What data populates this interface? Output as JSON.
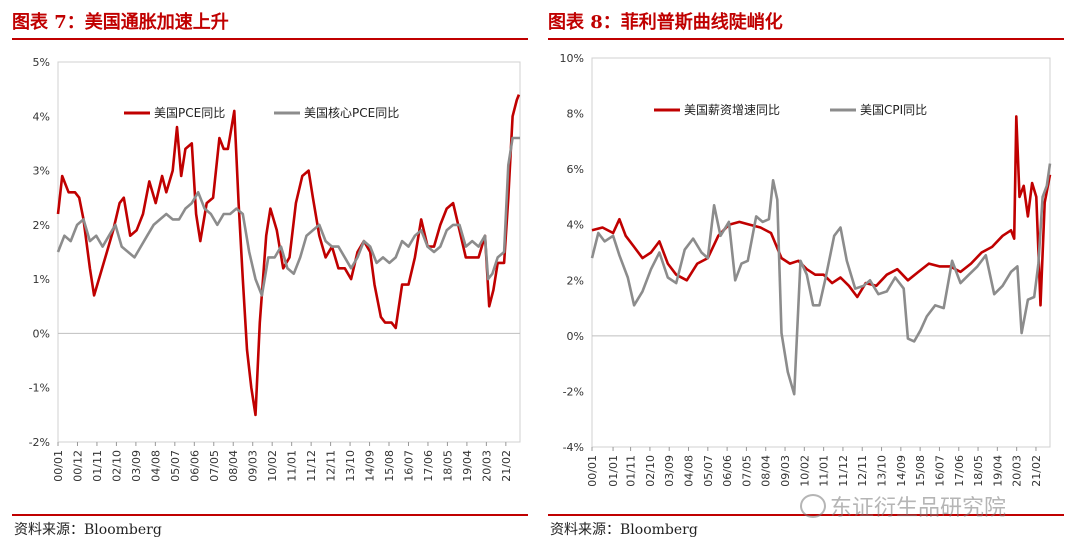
{
  "charts": [
    {
      "title": "图表 7：美国通胀加速上升",
      "source": "资料来源：Bloomberg",
      "chart_data": {
        "type": "line",
        "ylim": [
          -2,
          5
        ],
        "yticks": [
          "-2%",
          "-1%",
          "0%",
          "1%",
          "2%",
          "3%",
          "4%",
          "5%"
        ],
        "ytick_values": [
          -2,
          -1,
          0,
          1,
          2,
          3,
          4,
          5
        ],
        "xlim": [
          2000.0,
          2021.75
        ],
        "xticks": [
          "00/01",
          "00/12",
          "01/11",
          "02/10",
          "03/09",
          "04/08",
          "05/07",
          "06/06",
          "07/05",
          "08/04",
          "09/03",
          "10/02",
          "11/01",
          "11/12",
          "12/11",
          "13/10",
          "14/09",
          "15/08",
          "16/07",
          "17/06",
          "18/05",
          "19/04",
          "20/03",
          "21/02"
        ],
        "xtick_values": [
          2000.0,
          2000.917,
          2001.833,
          2002.75,
          2003.667,
          2004.583,
          2005.5,
          2006.417,
          2007.333,
          2008.25,
          2009.167,
          2010.083,
          2011.0,
          2011.917,
          2012.833,
          2013.75,
          2014.667,
          2015.583,
          2016.5,
          2017.417,
          2018.333,
          2019.25,
          2020.167,
          2021.083
        ],
        "legend_position": "top-left",
        "series": [
          {
            "name": "美国PCE同比",
            "color": "#c00000",
            "x": [
              2000.0,
              2000.2,
              2000.5,
              2000.8,
              2001.0,
              2001.2,
              2001.5,
              2001.7,
              2002.0,
              2002.3,
              2002.6,
              2002.9,
              2003.1,
              2003.4,
              2003.7,
              2004.0,
              2004.3,
              2004.6,
              2004.9,
              2005.1,
              2005.4,
              2005.6,
              2005.8,
              2006.0,
              2006.3,
              2006.5,
              2006.7,
              2007.0,
              2007.3,
              2007.6,
              2007.8,
              2008.0,
              2008.3,
              2008.5,
              2008.7,
              2008.9,
              2009.1,
              2009.3,
              2009.5,
              2009.8,
              2010.0,
              2010.3,
              2010.6,
              2010.9,
              2011.2,
              2011.5,
              2011.8,
              2012.0,
              2012.3,
              2012.6,
              2012.9,
              2013.2,
              2013.5,
              2013.8,
              2014.1,
              2014.4,
              2014.7,
              2014.9,
              2015.2,
              2015.4,
              2015.7,
              2015.9,
              2016.2,
              2016.5,
              2016.8,
              2017.1,
              2017.4,
              2017.7,
              2018.0,
              2018.3,
              2018.6,
              2018.9,
              2019.2,
              2019.5,
              2019.8,
              2020.1,
              2020.3,
              2020.5,
              2020.7,
              2021.0,
              2021.2,
              2021.4,
              2021.6,
              2021.7
            ],
            "y": [
              2.2,
              2.9,
              2.6,
              2.6,
              2.5,
              2.1,
              1.2,
              0.7,
              1.1,
              1.5,
              1.9,
              2.4,
              2.5,
              1.8,
              1.9,
              2.2,
              2.8,
              2.4,
              2.9,
              2.6,
              3.0,
              3.8,
              2.9,
              3.4,
              3.5,
              2.2,
              1.7,
              2.4,
              2.5,
              3.6,
              3.4,
              3.4,
              4.1,
              2.4,
              1.0,
              -0.3,
              -1.0,
              -1.5,
              0.2,
              1.8,
              2.3,
              1.9,
              1.2,
              1.4,
              2.4,
              2.9,
              3.0,
              2.5,
              1.8,
              1.4,
              1.6,
              1.2,
              1.2,
              1.0,
              1.5,
              1.7,
              1.5,
              0.9,
              0.3,
              0.2,
              0.2,
              0.1,
              0.9,
              0.9,
              1.4,
              2.1,
              1.6,
              1.6,
              2.0,
              2.3,
              2.4,
              1.9,
              1.4,
              1.4,
              1.4,
              1.8,
              0.5,
              0.8,
              1.3,
              1.3,
              2.5,
              4.0,
              4.3,
              4.4
            ]
          },
          {
            "name": "美国核心PCE同比",
            "color": "#8c8c8c",
            "x": [
              2000.0,
              2000.3,
              2000.6,
              2000.9,
              2001.2,
              2001.5,
              2001.8,
              2002.1,
              2002.4,
              2002.7,
              2003.0,
              2003.3,
              2003.6,
              2003.9,
              2004.2,
              2004.5,
              2004.8,
              2005.1,
              2005.4,
              2005.7,
              2006.0,
              2006.3,
              2006.6,
              2006.9,
              2007.2,
              2007.5,
              2007.8,
              2008.1,
              2008.4,
              2008.7,
              2009.0,
              2009.3,
              2009.6,
              2009.9,
              2010.2,
              2010.5,
              2010.8,
              2011.1,
              2011.4,
              2011.7,
              2012.0,
              2012.3,
              2012.6,
              2012.9,
              2013.2,
              2013.5,
              2013.8,
              2014.1,
              2014.4,
              2014.7,
              2015.0,
              2015.3,
              2015.6,
              2015.9,
              2016.2,
              2016.5,
              2016.8,
              2017.1,
              2017.4,
              2017.7,
              2018.0,
              2018.3,
              2018.6,
              2018.9,
              2019.2,
              2019.5,
              2019.8,
              2020.1,
              2020.25,
              2020.45,
              2020.7,
              2021.0,
              2021.2,
              2021.4,
              2021.6,
              2021.75
            ],
            "y": [
              1.5,
              1.8,
              1.7,
              2.0,
              2.1,
              1.7,
              1.8,
              1.6,
              1.8,
              2.0,
              1.6,
              1.5,
              1.4,
              1.6,
              1.8,
              2.0,
              2.1,
              2.2,
              2.1,
              2.1,
              2.3,
              2.4,
              2.6,
              2.3,
              2.2,
              2.0,
              2.2,
              2.2,
              2.3,
              2.2,
              1.5,
              1.0,
              0.7,
              1.4,
              1.4,
              1.6,
              1.2,
              1.1,
              1.4,
              1.8,
              1.9,
              2.0,
              1.7,
              1.6,
              1.6,
              1.4,
              1.2,
              1.4,
              1.7,
              1.6,
              1.3,
              1.4,
              1.3,
              1.4,
              1.7,
              1.6,
              1.8,
              1.9,
              1.6,
              1.5,
              1.6,
              1.9,
              2.0,
              2.0,
              1.6,
              1.7,
              1.6,
              1.8,
              1.0,
              1.1,
              1.4,
              1.5,
              3.1,
              3.6,
              3.6,
              3.6
            ]
          }
        ]
      }
    },
    {
      "title": "图表 8：菲利普斯曲线陡峭化",
      "source": "资料来源：Bloomberg",
      "chart_data": {
        "type": "line",
        "ylim": [
          -4,
          10
        ],
        "yticks": [
          "-4%",
          "-2%",
          "0%",
          "2%",
          "4%",
          "6%",
          "8%",
          "10%"
        ],
        "ytick_values": [
          -4,
          -2,
          0,
          2,
          4,
          6,
          8,
          10
        ],
        "xlim": [
          2000.0,
          2021.75
        ],
        "xticks": [
          "00/01",
          "01/01",
          "01/11",
          "02/10",
          "03/09",
          "04/08",
          "05/07",
          "06/06",
          "07/05",
          "08/04",
          "09/03",
          "10/02",
          "11/01",
          "11/12",
          "12/11",
          "13/10",
          "14/09",
          "15/08",
          "16/07",
          "17/06",
          "18/05",
          "19/04",
          "20/03",
          "21/02"
        ],
        "xtick_values": [
          2000.0,
          2001.0,
          2001.833,
          2002.75,
          2003.667,
          2004.583,
          2005.5,
          2006.417,
          2007.333,
          2008.25,
          2009.167,
          2010.083,
          2011.0,
          2011.917,
          2012.833,
          2013.75,
          2014.667,
          2015.583,
          2016.5,
          2017.417,
          2018.333,
          2019.25,
          2020.167,
          2021.083
        ],
        "legend_position": "top-left",
        "series": [
          {
            "name": "美国薪资增速同比",
            "color": "#c00000",
            "x": [
              2000.0,
              2000.5,
              2001.0,
              2001.3,
              2001.6,
              2002.0,
              2002.4,
              2002.8,
              2003.2,
              2003.6,
              2004.0,
              2004.5,
              2005.0,
              2005.5,
              2006.0,
              2006.5,
              2007.0,
              2007.5,
              2008.0,
              2008.5,
              2009.0,
              2009.4,
              2009.8,
              2010.2,
              2010.6,
              2011.0,
              2011.4,
              2011.8,
              2012.2,
              2012.6,
              2013.0,
              2013.5,
              2014.0,
              2014.5,
              2015.0,
              2015.5,
              2016.0,
              2016.5,
              2017.0,
              2017.5,
              2018.0,
              2018.5,
              2019.0,
              2019.5,
              2019.9,
              2020.05,
              2020.15,
              2020.3,
              2020.5,
              2020.7,
              2020.9,
              2021.1,
              2021.3,
              2021.5,
              2021.75
            ],
            "y": [
              3.8,
              3.9,
              3.7,
              4.2,
              3.6,
              3.2,
              2.8,
              3.0,
              3.4,
              2.6,
              2.2,
              2.0,
              2.6,
              2.8,
              3.6,
              4.0,
              4.1,
              4.0,
              3.9,
              3.7,
              2.8,
              2.6,
              2.7,
              2.4,
              2.2,
              2.2,
              1.9,
              2.1,
              1.8,
              1.4,
              1.9,
              1.8,
              2.2,
              2.4,
              2.0,
              2.3,
              2.6,
              2.5,
              2.5,
              2.3,
              2.6,
              3.0,
              3.2,
              3.6,
              3.8,
              3.5,
              7.9,
              5.0,
              5.4,
              4.3,
              5.5,
              5.0,
              1.1,
              4.8,
              5.8
            ]
          },
          {
            "name": "美国CPI同比",
            "color": "#8c8c8c",
            "x": [
              2000.0,
              2000.3,
              2000.6,
              2001.0,
              2001.3,
              2001.7,
              2002.0,
              2002.4,
              2002.8,
              2003.2,
              2003.6,
              2004.0,
              2004.4,
              2004.8,
              2005.2,
              2005.5,
              2005.8,
              2006.1,
              2006.5,
              2006.8,
              2007.1,
              2007.4,
              2007.8,
              2008.1,
              2008.4,
              2008.6,
              2008.8,
              2009.0,
              2009.3,
              2009.6,
              2009.9,
              2010.2,
              2010.5,
              2010.8,
              2011.1,
              2011.5,
              2011.8,
              2012.1,
              2012.5,
              2012.9,
              2013.2,
              2013.6,
              2014.0,
              2014.4,
              2014.8,
              2015.0,
              2015.3,
              2015.6,
              2015.9,
              2016.3,
              2016.7,
              2017.1,
              2017.5,
              2017.9,
              2018.3,
              2018.7,
              2019.1,
              2019.5,
              2019.9,
              2020.2,
              2020.4,
              2020.7,
              2021.0,
              2021.2,
              2021.4,
              2021.6,
              2021.75
            ],
            "y": [
              2.8,
              3.7,
              3.4,
              3.6,
              2.9,
              2.1,
              1.1,
              1.6,
              2.4,
              3.0,
              2.1,
              1.9,
              3.1,
              3.5,
              3.0,
              2.8,
              4.7,
              3.6,
              4.1,
              2.0,
              2.6,
              2.7,
              4.3,
              4.1,
              4.2,
              5.6,
              4.9,
              0.1,
              -1.3,
              -2.1,
              2.7,
              2.2,
              1.1,
              1.1,
              2.1,
              3.6,
              3.9,
              2.7,
              1.7,
              1.8,
              2.0,
              1.5,
              1.6,
              2.1,
              1.7,
              -0.1,
              -0.2,
              0.2,
              0.7,
              1.1,
              1.0,
              2.7,
              1.9,
              2.2,
              2.5,
              2.9,
              1.5,
              1.8,
              2.3,
              2.5,
              0.1,
              1.3,
              1.4,
              2.6,
              5.0,
              5.4,
              6.2
            ]
          }
        ]
      }
    }
  ],
  "watermark": {
    "text": "东证衍生品研究院",
    "icon": "wechat-logo-icon"
  }
}
